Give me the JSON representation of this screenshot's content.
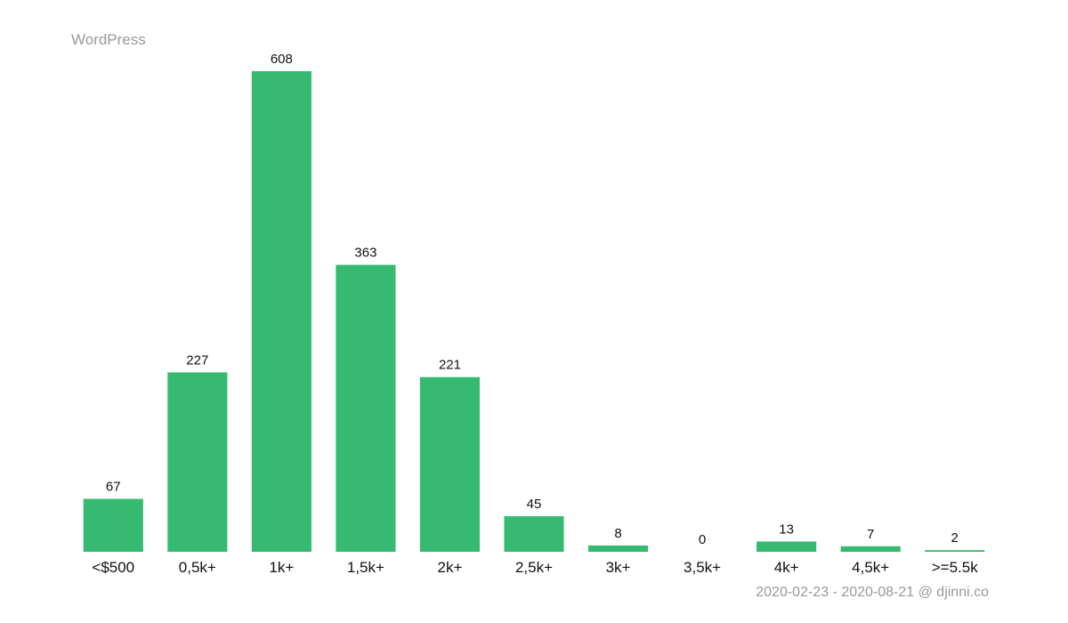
{
  "chart_data": {
    "type": "bar",
    "title": "WordPress",
    "footnote": "2020-02-23 - 2020-08-21 @ djinni.co",
    "categories": [
      "<$500",
      "0,5k+",
      "1k+",
      "1,5k+",
      "2k+",
      "2,5k+",
      "3k+",
      "3,5k+",
      "4k+",
      "4,5k+",
      ">=5.5k"
    ],
    "values": [
      67,
      227,
      608,
      363,
      221,
      45,
      8,
      0,
      13,
      7,
      2
    ],
    "color": "#36ba72",
    "value_labels_shown": true
  }
}
